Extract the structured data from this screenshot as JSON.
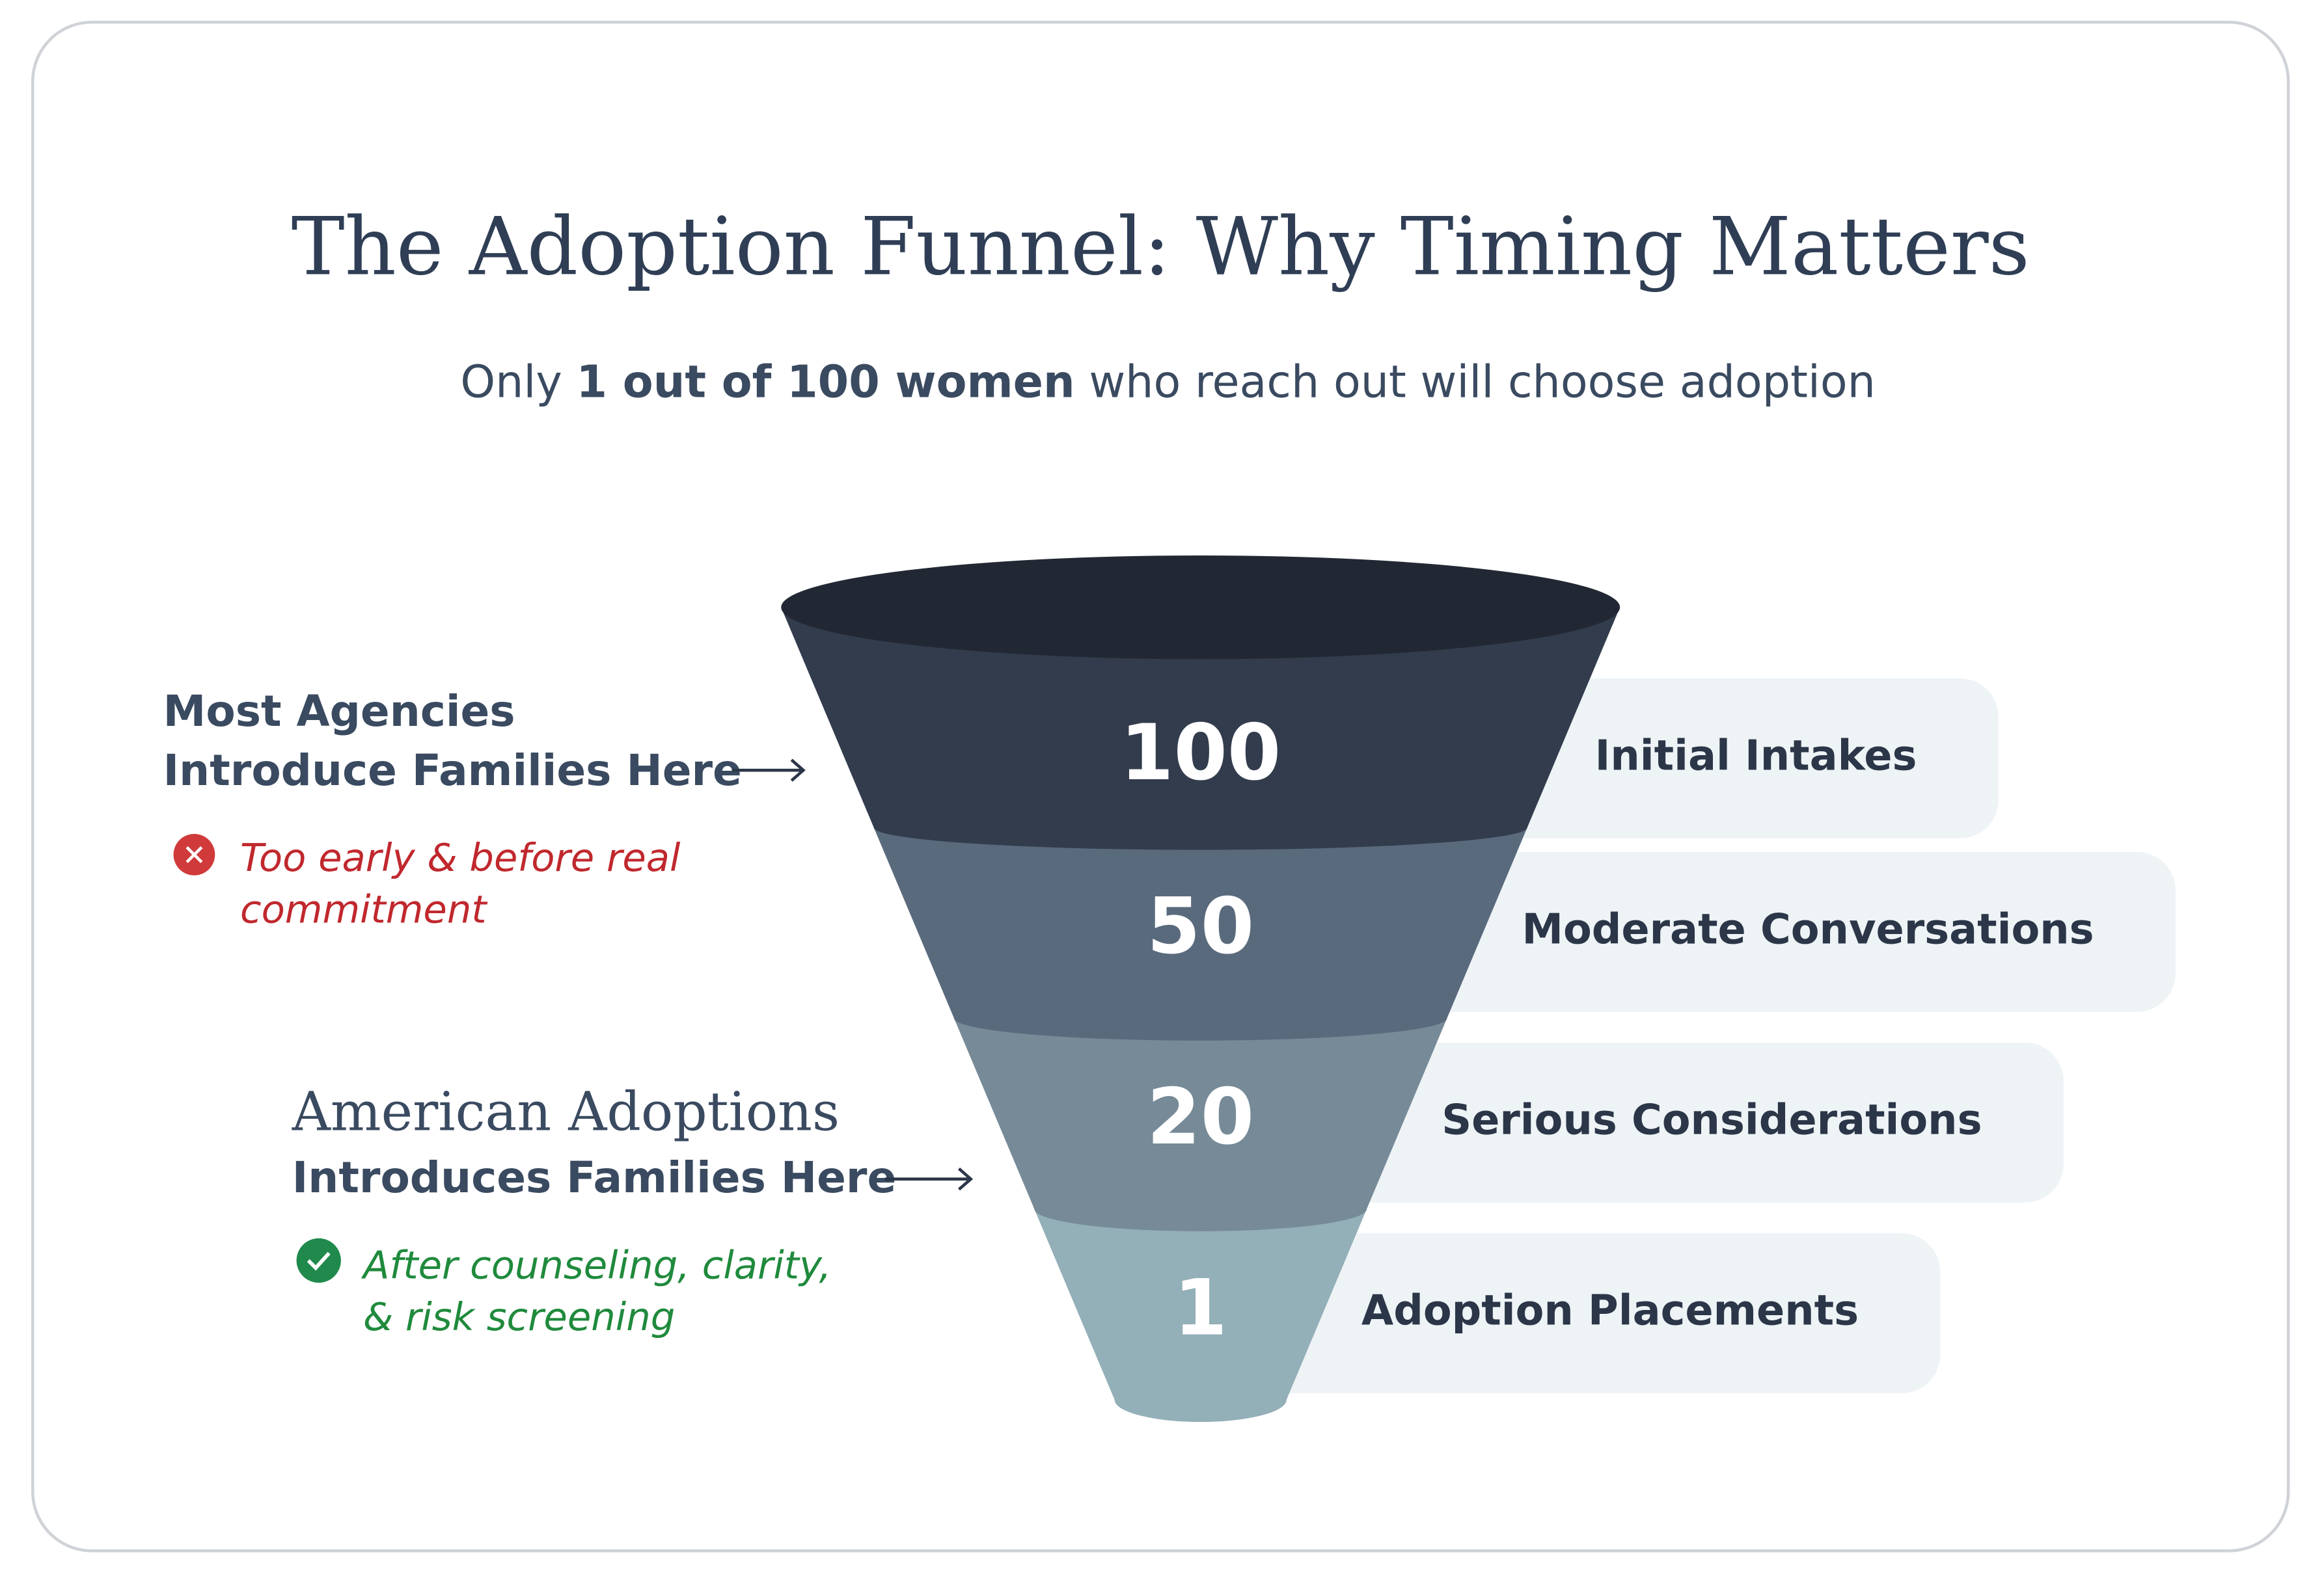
{
  "chart_data": {
    "type": "funnel",
    "title": "The Adoption Funnel: Why Timing Matters",
    "subtitle": {
      "before": "Only ",
      "emphasis": "1 out of 100 women",
      "after": " who reach out will choose adoption"
    },
    "categories": [
      "Initial Intakes",
      "Moderate Conversations",
      "Serious Considerations",
      "Adoption Placements"
    ],
    "values": [
      100,
      50,
      20,
      1
    ],
    "colors": [
      "#323c4d",
      "#5a6a7d",
      "#768a97",
      "#93afb8"
    ],
    "annotations": [
      {
        "heading": [
          "Most Agencies",
          "Introduce Families Here"
        ],
        "note": [
          "Too early & before real",
          "commitment"
        ]
      },
      {
        "heading": [
          "American Adoptions",
          "Introduces Families Here"
        ],
        "note": [
          "After counseling, clarity,",
          "& risk screening"
        ]
      }
    ]
  }
}
